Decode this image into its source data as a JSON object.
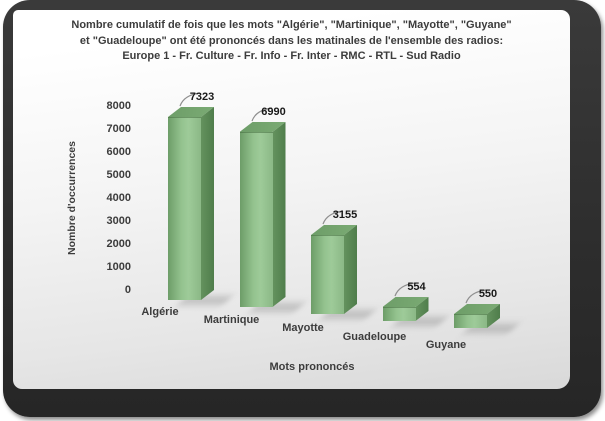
{
  "header": {
    "title_lines": [
      "Nombre cumulatif de fois que les mots \"Algérie\", \"Martinique\", \"Mayotte\", \"Guyane\"",
      "et \"Guadeloupe\" ont été prononcés dans les matinales de l'ensemble des radios:",
      "Europe 1 - Fr. Culture - Fr. Info - Fr. Inter - RMC - RTL - Sud Radio"
    ]
  },
  "y_axis": {
    "title": "Nombre d'occurrences",
    "ticks": [
      "8000",
      "7000",
      "6000",
      "5000",
      "4000",
      "3000",
      "2000",
      "1000",
      "0"
    ]
  },
  "x_axis": {
    "title": "Mots prononcés"
  },
  "chart_data": {
    "type": "bar",
    "style": "3d-column",
    "title": "Nombre cumulatif de fois que les mots \"Algérie\", \"Martinique\", \"Mayotte\", \"Guyane\" et \"Guadeloupe\" ont été prononcés dans les matinales de l'ensemble des radios: Europe 1 - Fr. Culture - Fr. Info - Fr. Inter - RMC - RTL - Sud Radio",
    "categories": [
      "Algérie",
      "Martinique",
      "Mayotte",
      "Guadeloupe",
      "Guyane"
    ],
    "values": [
      7323,
      6990,
      3155,
      554,
      550
    ],
    "data_labels": [
      "7323",
      "6990",
      "3155",
      "554",
      "550"
    ],
    "xlabel": "Mots prononcés",
    "ylabel": "Nombre d'occurrences",
    "ylim": [
      0,
      8000
    ],
    "ytick_step": 1000,
    "grid": false,
    "legend": "none",
    "bar_color": "#8fbc8b"
  },
  "colors": {
    "frame": "#2e2e2e",
    "card_top": "#ffffff",
    "card_bottom": "#d9d9d9",
    "text": "#3c3c3c",
    "bar_front_dark": "#6d9d68",
    "bar_front_light": "#9ecb99",
    "bar_side_dark": "#4f7d4b",
    "bar_top": "#7bab74",
    "leader_line": "#8f8f8f"
  }
}
